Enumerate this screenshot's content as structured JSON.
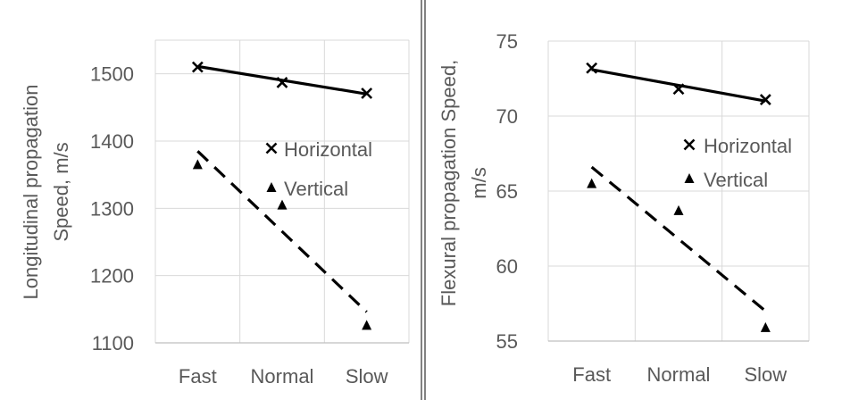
{
  "chart_data": [
    {
      "type": "scatter",
      "title": "",
      "categories": [
        "Fast",
        "Normal",
        "Slow"
      ],
      "xlabel": "",
      "ylabel": "Longitudinal propagation Speed, m/s",
      "ylabel_lines": [
        "Longitudinal propagation",
        "Speed, m/s"
      ],
      "ylim": [
        1100,
        1550
      ],
      "yticks": [
        1100,
        1200,
        1300,
        1400,
        1500
      ],
      "grid": true,
      "legend_position": "center-right inside plot",
      "series": [
        {
          "name": "Horizontal",
          "marker": "x",
          "values": [
            1510,
            1487,
            1471
          ],
          "trendline": {
            "start": 1511,
            "end": 1470,
            "style": "solid"
          }
        },
        {
          "name": "Vertical",
          "marker": "triangle",
          "values": [
            1365,
            1305,
            1126
          ],
          "trendline": {
            "start": 1385,
            "end": 1146,
            "style": "dashed"
          }
        }
      ]
    },
    {
      "type": "scatter",
      "title": "",
      "categories": [
        "Fast",
        "Normal",
        "Slow"
      ],
      "xlabel": "",
      "ylabel": "Flexural propagation Speed, m/s",
      "ylabel_lines": [
        "Flexural propagation Speed,",
        "m/s"
      ],
      "ylim": [
        55,
        75
      ],
      "yticks": [
        55,
        60,
        65,
        70,
        75
      ],
      "grid": true,
      "legend_position": "center-right inside plot",
      "series": [
        {
          "name": "Horizontal",
          "marker": "x",
          "values": [
            73.2,
            71.8,
            71.1
          ],
          "trendline": {
            "start": 73.1,
            "end": 71.0,
            "style": "solid"
          }
        },
        {
          "name": "Vertical",
          "marker": "triangle",
          "values": [
            65.5,
            63.7,
            55.9
          ],
          "trendline": {
            "start": 66.6,
            "end": 57.0,
            "style": "dashed"
          }
        }
      ]
    }
  ]
}
